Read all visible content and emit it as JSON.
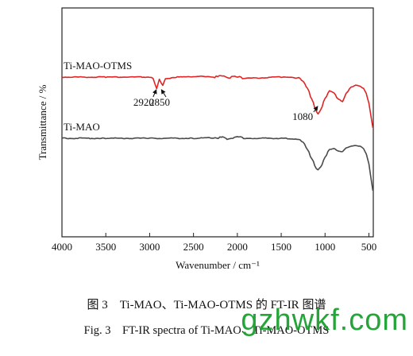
{
  "chart_data": {
    "type": "line",
    "xlabel": "Wavenumber / cm⁻¹",
    "ylabel": "Transmittance / %",
    "xlim": [
      4000,
      450
    ],
    "x_reversed": true,
    "y_ticks_shown": false,
    "xticks": [
      4000,
      3500,
      3000,
      2500,
      2000,
      1500,
      1000,
      500
    ],
    "series": [
      {
        "name": "Ti-MAO-OTMS",
        "color": "#e02424",
        "x": [
          4000,
          3500,
          3100,
          3000,
          2960,
          2920,
          2890,
          2850,
          2820,
          2700,
          2400,
          2100,
          1800,
          1500,
          1300,
          1250,
          1200,
          1150,
          1100,
          1080,
          1050,
          1000,
          950,
          900,
          850,
          800,
          760,
          700,
          650,
          600,
          560,
          530,
          500,
          470,
          455
        ],
        "y": [
          0.0,
          0.0,
          0.0,
          0.0,
          -0.02,
          -0.14,
          -0.03,
          -0.1,
          -0.02,
          0.0,
          0.01,
          0.0,
          -0.01,
          0.0,
          -0.01,
          -0.05,
          -0.14,
          -0.27,
          -0.42,
          -0.45,
          -0.4,
          -0.26,
          -0.17,
          -0.19,
          -0.27,
          -0.3,
          -0.2,
          -0.12,
          -0.1,
          -0.11,
          -0.14,
          -0.2,
          -0.32,
          -0.52,
          -0.62
        ]
      },
      {
        "name": "Ti-MAO",
        "color": "#4a4a4a",
        "x": [
          4000,
          3500,
          3000,
          2500,
          2200,
          2100,
          2000,
          1800,
          1500,
          1300,
          1250,
          1200,
          1150,
          1100,
          1080,
          1050,
          1000,
          950,
          900,
          850,
          800,
          760,
          700,
          650,
          600,
          560,
          530,
          500,
          470,
          455
        ],
        "y": [
          0.0,
          0.0,
          0.0,
          0.0,
          0.01,
          0.0,
          0.01,
          0.0,
          0.0,
          -0.01,
          -0.05,
          -0.14,
          -0.26,
          -0.38,
          -0.4,
          -0.36,
          -0.24,
          -0.14,
          -0.13,
          -0.16,
          -0.17,
          -0.12,
          -0.1,
          -0.09,
          -0.1,
          -0.13,
          -0.2,
          -0.32,
          -0.55,
          -0.66
        ]
      }
    ],
    "annotations": [
      {
        "label": "2920",
        "x": 2920,
        "series": "Ti-MAO-OTMS"
      },
      {
        "label": "2850",
        "x": 2850,
        "series": "Ti-MAO-OTMS"
      },
      {
        "label": "1080",
        "x": 1080,
        "series": "Ti-MAO-OTMS"
      }
    ]
  },
  "caption": {
    "cn": "图 3　Ti-MAO、Ti-MAO-OTMS 的 FT-IR 图谱",
    "en": "Fig. 3　FT-IR spectra of Ti-MAO、Ti-MAO-OTMS"
  },
  "watermark": "gzhwkf.com"
}
